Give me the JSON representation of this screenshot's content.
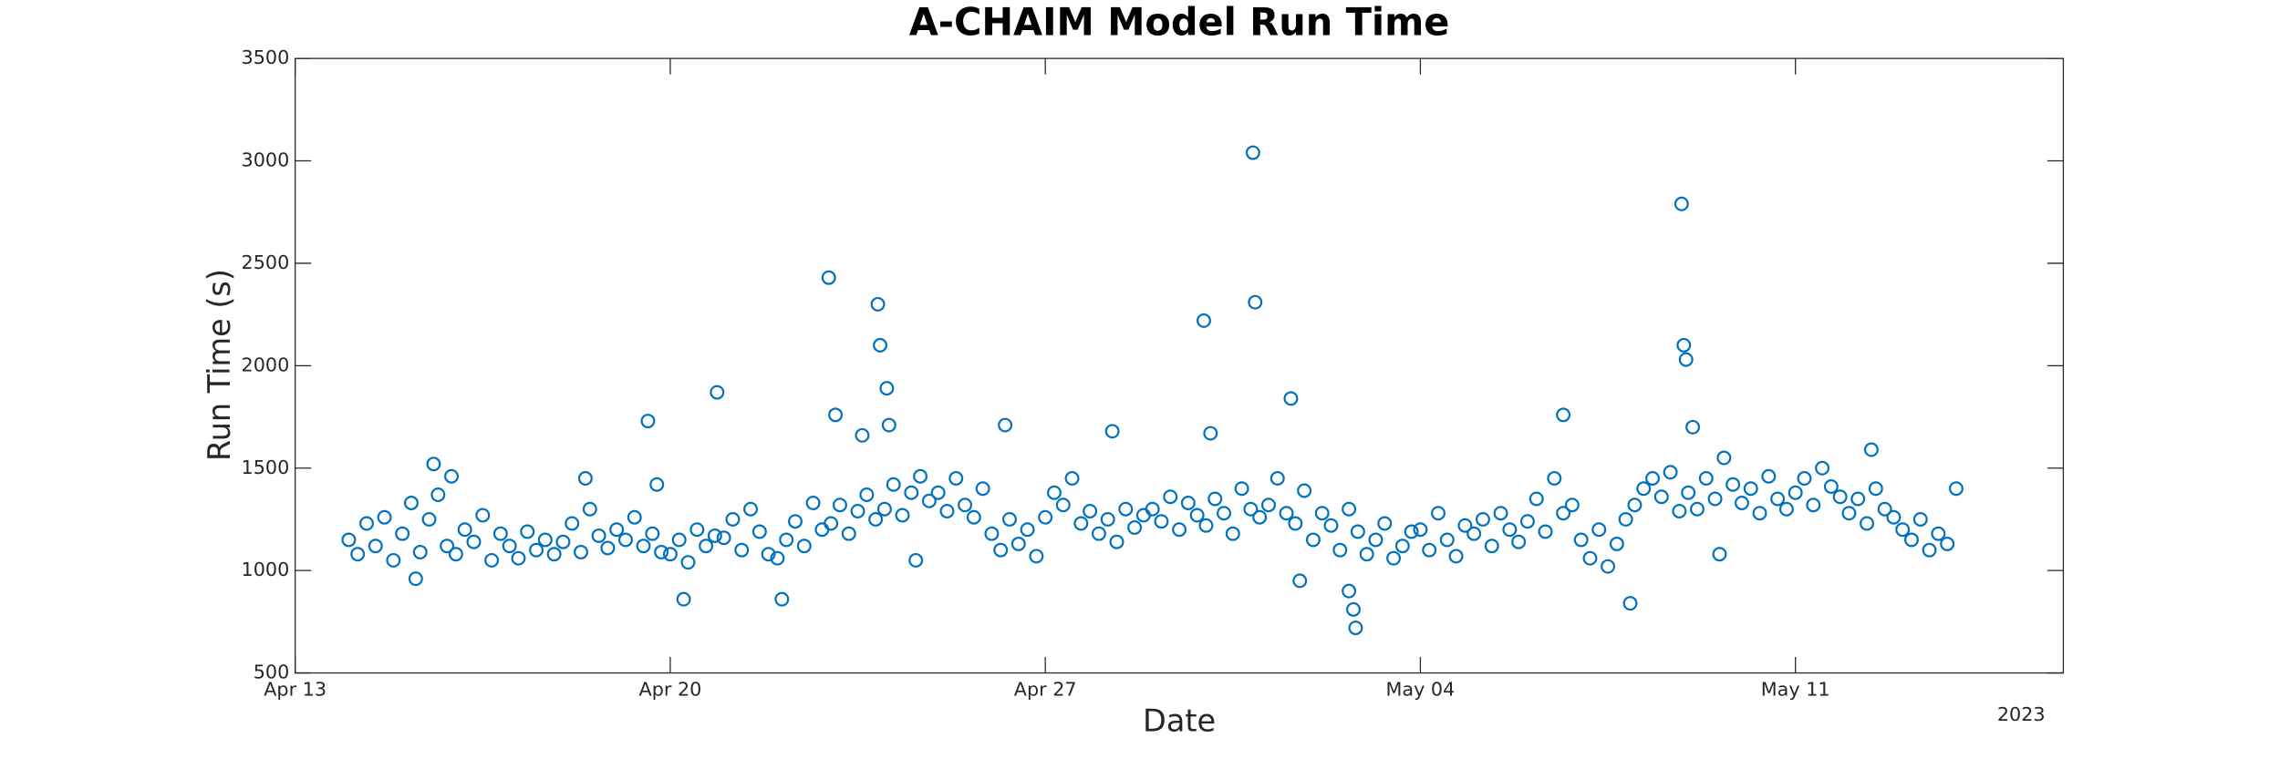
{
  "chart_data": {
    "type": "scatter",
    "title": "A-CHAIM Model Run Time",
    "x_label": "Date",
    "y_label": "Run Time (s)",
    "x_year": "2023",
    "color": "#0072bd",
    "grid": false,
    "xlim": [
      "2023-04-13T00:00",
      "2023-05-16T00:00"
    ],
    "xticks": [
      {
        "value": "2023-04-13T00:00",
        "label": "Apr 13"
      },
      {
        "value": "2023-04-20T00:00",
        "label": "Apr 20"
      },
      {
        "value": "2023-04-27T00:00",
        "label": "Apr 27"
      },
      {
        "value": "2023-05-04T00:00",
        "label": "May 04"
      },
      {
        "value": "2023-05-11T00:00",
        "label": "May 11"
      }
    ],
    "ylim": [
      500,
      3500
    ],
    "yticks": [
      500,
      1000,
      1500,
      2000,
      2500,
      3000,
      3500
    ],
    "x": [
      "2023-04-14T00:00",
      "2023-04-14T04:00",
      "2023-04-14T08:00",
      "2023-04-14T12:00",
      "2023-04-14T16:00",
      "2023-04-14T20:00",
      "2023-04-15T00:00",
      "2023-04-15T04:00",
      "2023-04-15T08:00",
      "2023-04-15T12:00",
      "2023-04-15T16:00",
      "2023-04-15T20:00",
      "2023-04-16T00:00",
      "2023-04-16T04:00",
      "2023-04-16T08:00",
      "2023-04-16T12:00",
      "2023-04-16T16:00",
      "2023-04-16T20:00",
      "2023-04-17T00:00",
      "2023-04-17T04:00",
      "2023-04-17T08:00",
      "2023-04-17T12:00",
      "2023-04-17T16:00",
      "2023-04-17T20:00",
      "2023-04-18T00:00",
      "2023-04-18T04:00",
      "2023-04-18T08:00",
      "2023-04-18T12:00",
      "2023-04-18T16:00",
      "2023-04-18T20:00",
      "2023-04-19T00:00",
      "2023-04-19T04:00",
      "2023-04-19T08:00",
      "2023-04-19T12:00",
      "2023-04-19T16:00",
      "2023-04-19T20:00",
      "2023-04-20T00:00",
      "2023-04-20T04:00",
      "2023-04-20T08:00",
      "2023-04-20T12:00",
      "2023-04-20T16:00",
      "2023-04-20T20:00",
      "2023-04-21T00:00",
      "2023-04-21T04:00",
      "2023-04-21T08:00",
      "2023-04-21T12:00",
      "2023-04-21T16:00",
      "2023-04-21T20:00",
      "2023-04-22T00:00",
      "2023-04-22T04:00",
      "2023-04-22T08:00",
      "2023-04-22T12:00",
      "2023-04-22T16:00",
      "2023-04-22T20:00",
      "2023-04-23T00:00",
      "2023-04-23T04:00",
      "2023-04-23T08:00",
      "2023-04-23T12:00",
      "2023-04-23T16:00",
      "2023-04-23T20:00",
      "2023-04-24T00:00",
      "2023-04-24T04:00",
      "2023-04-24T08:00",
      "2023-04-24T12:00",
      "2023-04-24T16:00",
      "2023-04-24T20:00",
      "2023-04-25T00:00",
      "2023-04-25T04:00",
      "2023-04-25T08:00",
      "2023-04-25T12:00",
      "2023-04-25T16:00",
      "2023-04-25T20:00",
      "2023-04-26T00:00",
      "2023-04-26T04:00",
      "2023-04-26T08:00",
      "2023-04-26T12:00",
      "2023-04-26T16:00",
      "2023-04-26T20:00",
      "2023-04-27T00:00",
      "2023-04-27T04:00",
      "2023-04-27T08:00",
      "2023-04-27T12:00",
      "2023-04-27T16:00",
      "2023-04-27T20:00",
      "2023-04-28T00:00",
      "2023-04-28T04:00",
      "2023-04-28T08:00",
      "2023-04-28T12:00",
      "2023-04-28T16:00",
      "2023-04-28T20:00",
      "2023-04-29T00:00",
      "2023-04-29T04:00",
      "2023-04-29T08:00",
      "2023-04-29T12:00",
      "2023-04-29T16:00",
      "2023-04-29T20:00",
      "2023-04-30T00:00",
      "2023-04-30T04:00",
      "2023-04-30T08:00",
      "2023-04-30T12:00",
      "2023-04-30T16:00",
      "2023-04-30T20:00",
      "2023-05-01T00:00",
      "2023-05-01T04:00",
      "2023-05-01T08:00",
      "2023-05-01T12:00",
      "2023-05-01T16:00",
      "2023-05-01T20:00",
      "2023-05-02T00:00",
      "2023-05-02T04:00",
      "2023-05-02T08:00",
      "2023-05-02T12:00",
      "2023-05-02T16:00",
      "2023-05-02T20:00",
      "2023-05-03T00:00",
      "2023-05-03T04:00",
      "2023-05-03T08:00",
      "2023-05-03T12:00",
      "2023-05-03T16:00",
      "2023-05-03T20:00",
      "2023-05-04T00:00",
      "2023-05-04T04:00",
      "2023-05-04T08:00",
      "2023-05-04T12:00",
      "2023-05-04T16:00",
      "2023-05-04T20:00",
      "2023-05-05T00:00",
      "2023-05-05T04:00",
      "2023-05-05T08:00",
      "2023-05-05T12:00",
      "2023-05-05T16:00",
      "2023-05-05T20:00",
      "2023-05-06T00:00",
      "2023-05-06T04:00",
      "2023-05-06T08:00",
      "2023-05-06T12:00",
      "2023-05-06T16:00",
      "2023-05-06T20:00",
      "2023-05-07T00:00",
      "2023-05-07T04:00",
      "2023-05-07T08:00",
      "2023-05-07T12:00",
      "2023-05-07T16:00",
      "2023-05-07T20:00",
      "2023-05-08T00:00",
      "2023-05-08T04:00",
      "2023-05-08T08:00",
      "2023-05-08T12:00",
      "2023-05-08T16:00",
      "2023-05-08T20:00",
      "2023-05-09T00:00",
      "2023-05-09T04:00",
      "2023-05-09T08:00",
      "2023-05-09T12:00",
      "2023-05-09T16:00",
      "2023-05-09T20:00",
      "2023-05-10T00:00",
      "2023-05-10T04:00",
      "2023-05-10T08:00",
      "2023-05-10T12:00",
      "2023-05-10T16:00",
      "2023-05-10T20:00",
      "2023-05-11T00:00",
      "2023-05-11T04:00",
      "2023-05-11T08:00",
      "2023-05-11T12:00",
      "2023-05-11T16:00",
      "2023-05-11T20:00",
      "2023-05-12T00:00",
      "2023-05-12T04:00",
      "2023-05-12T08:00",
      "2023-05-12T12:00",
      "2023-05-12T16:00",
      "2023-05-12T20:00",
      "2023-05-13T00:00",
      "2023-05-13T04:00",
      "2023-05-13T08:00",
      "2023-05-13T12:00",
      "2023-05-13T16:00",
      "2023-05-13T20:00",
      "2023-05-14T00:00",
      "2023-04-15T06:00",
      "2023-04-15T14:00",
      "2023-04-15T22:00",
      "2023-04-18T10:00",
      "2023-04-19T14:00",
      "2023-04-19T18:00",
      "2023-04-20T06:00",
      "2023-04-20T21:00",
      "2023-04-22T02:00",
      "2023-04-22T23:00",
      "2023-04-23T02:00",
      "2023-04-23T14:00",
      "2023-04-23T21:00",
      "2023-04-23T22:00",
      "2023-04-24T01:00",
      "2023-04-24T02:00",
      "2023-04-24T14:00",
      "2023-04-26T06:00",
      "2023-04-28T06:00",
      "2023-04-29T23:00",
      "2023-04-30T02:00",
      "2023-04-30T21:00",
      "2023-04-30T22:00",
      "2023-05-01T14:00",
      "2023-05-01T18:00",
      "2023-05-02T16:00",
      "2023-05-02T18:00",
      "2023-05-02T19:00",
      "2023-05-06T16:00",
      "2023-05-07T22:00",
      "2023-05-08T21:00",
      "2023-05-08T22:00",
      "2023-05-08T23:00",
      "2023-05-09T02:00",
      "2023-05-09T14:00",
      "2023-05-12T10:00"
    ],
    "values": [
      1150,
      1080,
      1230,
      1120,
      1260,
      1050,
      1180,
      1330,
      1090,
      1250,
      1370,
      1120,
      1080,
      1200,
      1140,
      1270,
      1050,
      1180,
      1120,
      1060,
      1190,
      1100,
      1150,
      1080,
      1140,
      1230,
      1090,
      1300,
      1170,
      1110,
      1200,
      1150,
      1260,
      1120,
      1180,
      1090,
      1080,
      1150,
      1040,
      1200,
      1120,
      1170,
      1160,
      1250,
      1100,
      1300,
      1190,
      1080,
      1060,
      1150,
      1240,
      1120,
      1330,
      1200,
      1230,
      1320,
      1180,
      1290,
      1370,
      1250,
      1300,
      1420,
      1270,
      1380,
      1460,
      1340,
      1380,
      1290,
      1450,
      1320,
      1260,
      1400,
      1180,
      1100,
      1250,
      1130,
      1200,
      1070,
      1260,
      1380,
      1320,
      1450,
      1230,
      1290,
      1180,
      1250,
      1140,
      1300,
      1210,
      1270,
      1300,
      1240,
      1360,
      1200,
      1330,
      1270,
      1220,
      1350,
      1280,
      1180,
      1400,
      1300,
      1260,
      1320,
      1450,
      1280,
      1230,
      1390,
      1150,
      1280,
      1220,
      1100,
      1300,
      1190,
      1080,
      1150,
      1230,
      1060,
      1120,
      1190,
      1200,
      1100,
      1280,
      1150,
      1070,
      1220,
      1180,
      1250,
      1120,
      1280,
      1200,
      1140,
      1240,
      1350,
      1190,
      1450,
      1280,
      1320,
      1150,
      1060,
      1200,
      1020,
      1130,
      1250,
      1320,
      1400,
      1450,
      1360,
      1480,
      1290,
      1380,
      1300,
      1450,
      1350,
      1550,
      1420,
      1330,
      1400,
      1280,
      1460,
      1350,
      1300,
      1380,
      1450,
      1320,
      1500,
      1410,
      1360,
      1280,
      1350,
      1230,
      1400,
      1300,
      1260,
      1200,
      1150,
      1250,
      1100,
      1180,
      1130,
      1400,
      960,
      1520,
      1460,
      1450,
      1730,
      1420,
      860,
      1870,
      860,
      2430,
      1760,
      1660,
      2300,
      2100,
      1890,
      1710,
      1050,
      1710,
      1680,
      2220,
      1670,
      3040,
      2310,
      1840,
      950,
      900,
      810,
      720,
      1760,
      840,
      2790,
      2100,
      2030,
      1700,
      1080,
      1590
    ]
  }
}
